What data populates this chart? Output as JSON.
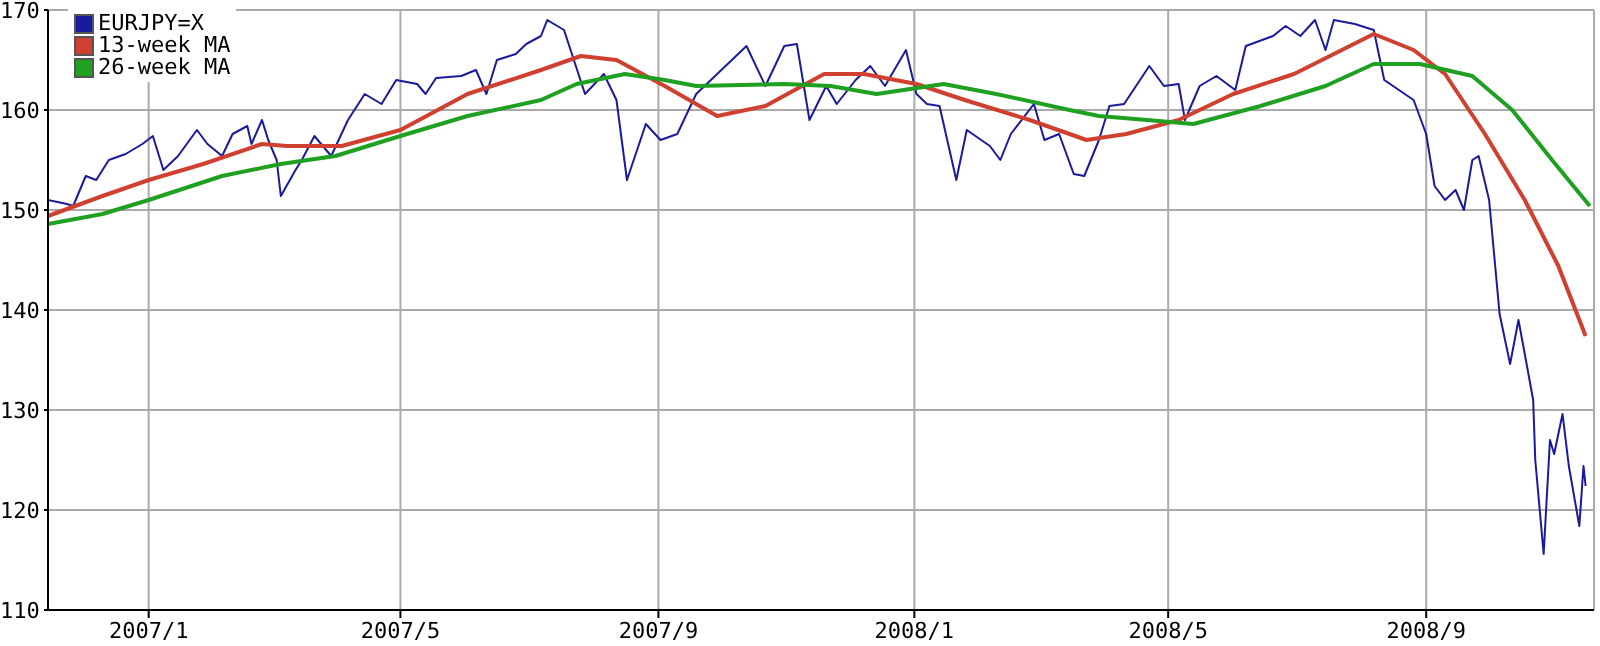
{
  "chart_data": {
    "type": "line",
    "xlim": [
      "2006-11-14",
      "2008-11-20"
    ],
    "xticks": [
      {
        "value": "2007-01-01",
        "label": "2007/1"
      },
      {
        "value": "2007-05-01",
        "label": "2007/5"
      },
      {
        "value": "2007-09-01",
        "label": "2007/9"
      },
      {
        "value": "2008-01-01",
        "label": "2008/1"
      },
      {
        "value": "2008-05-01",
        "label": "2008/5"
      },
      {
        "value": "2008-09-01",
        "label": "2008/9"
      }
    ],
    "ylim": [
      110,
      170
    ],
    "yticks": [
      110,
      120,
      130,
      140,
      150,
      160,
      170
    ],
    "grid": true,
    "legend": "top left",
    "marker": "none",
    "line_style": "solid",
    "series": [
      {
        "name": "EURJPY=X",
        "color": "#1a1a9c",
        "x": [
          "2006-11-14",
          "2006-11-23",
          "2006-11-26",
          "2006-12-02",
          "2006-12-07",
          "2006-12-13",
          "2006-12-21",
          "2006-12-29",
          "2007-01-03",
          "2007-01-08",
          "2007-01-15",
          "2007-01-24",
          "2007-01-29",
          "2007-02-05",
          "2007-02-10",
          "2007-02-17",
          "2007-02-19",
          "2007-02-24",
          "2007-02-27",
          "2007-03-03",
          "2007-03-05",
          "2007-03-12",
          "2007-03-15",
          "2007-03-21",
          "2007-03-29",
          "2007-04-06",
          "2007-04-14",
          "2007-04-22",
          "2007-04-29",
          "2007-05-09",
          "2007-05-13",
          "2007-05-18",
          "2007-05-30",
          "2007-06-06",
          "2007-06-11",
          "2007-06-16",
          "2007-06-25",
          "2007-06-30",
          "2007-07-07",
          "2007-07-10",
          "2007-07-18",
          "2007-07-28",
          "2007-08-06",
          "2007-08-12",
          "2007-08-17",
          "2007-08-26",
          "2007-09-02",
          "2007-09-10",
          "2007-09-19",
          "2007-10-03",
          "2007-10-13",
          "2007-10-22",
          "2007-10-31",
          "2007-11-06",
          "2007-11-12",
          "2007-11-20",
          "2007-11-25",
          "2007-12-04",
          "2007-12-11",
          "2007-12-18",
          "2007-12-28",
          "2008-01-02",
          "2008-01-07",
          "2008-01-13",
          "2008-01-21",
          "2008-01-26",
          "2008-02-06",
          "2008-02-11",
          "2008-02-16",
          "2008-02-27",
          "2008-03-03",
          "2008-03-10",
          "2008-03-17",
          "2008-03-22",
          "2008-03-29",
          "2008-04-03",
          "2008-04-10",
          "2008-04-22",
          "2008-04-29",
          "2008-05-06",
          "2008-05-09",
          "2008-05-16",
          "2008-05-24",
          "2008-06-02",
          "2008-06-07",
          "2008-06-20",
          "2008-06-26",
          "2008-07-03",
          "2008-07-10",
          "2008-07-15",
          "2008-07-19",
          "2008-07-29",
          "2008-08-07",
          "2008-08-12",
          "2008-08-19",
          "2008-08-26",
          "2008-09-01",
          "2008-09-05",
          "2008-09-10",
          "2008-09-15",
          "2008-09-19",
          "2008-09-23",
          "2008-09-26",
          "2008-10-01",
          "2008-10-06",
          "2008-10-11",
          "2008-10-15",
          "2008-10-18",
          "2008-10-22",
          "2008-10-23",
          "2008-10-27",
          "2008-10-30",
          "2008-11-01",
          "2008-11-05",
          "2008-11-08",
          "2008-11-13",
          "2008-11-15",
          "2008-11-16"
        ],
        "values": [
          151,
          150.6,
          150.4,
          153.4,
          153,
          155,
          155.6,
          156.6,
          157.4,
          154,
          155.4,
          158,
          156.6,
          155.4,
          157.6,
          158.4,
          156.6,
          159,
          157,
          155,
          151.4,
          154,
          155,
          157.4,
          155.4,
          159,
          161.6,
          160.6,
          163,
          162.6,
          161.6,
          163.2,
          163.4,
          164,
          161.6,
          165,
          165.6,
          166.6,
          167.4,
          169,
          168,
          161.6,
          163.6,
          161,
          153,
          158.6,
          157,
          157.6,
          161.6,
          164.4,
          166.4,
          162.4,
          166.4,
          166.6,
          159,
          162.4,
          160.6,
          163,
          164.4,
          162.4,
          166,
          161.6,
          160.6,
          160.4,
          153,
          158,
          156.4,
          155,
          157.6,
          160.6,
          157,
          157.6,
          153.6,
          153.4,
          157,
          160.4,
          160.6,
          164.4,
          162.4,
          162.6,
          159,
          162.4,
          163.4,
          162,
          166.4,
          167.4,
          168.4,
          167.4,
          169,
          166,
          169,
          168.6,
          168,
          163,
          162,
          161,
          157.6,
          152.4,
          151,
          152,
          150,
          155,
          155.4,
          151,
          139.6,
          134.6,
          139,
          135.6,
          131,
          125,
          115.6,
          127,
          125.6,
          129.6,
          124.4,
          118.4,
          124.4,
          122.4
        ]
      },
      {
        "name": "13-week MA",
        "color": "#d04030",
        "x": [
          "2006-11-14",
          "2006-12-10",
          "2007-01-01",
          "2007-01-27",
          "2007-02-24",
          "2007-03-08",
          "2007-04-03",
          "2007-05-01",
          "2007-06-02",
          "2007-07-07",
          "2007-07-26",
          "2007-08-12",
          "2007-09-04",
          "2007-09-29",
          "2007-10-22",
          "2007-11-19",
          "2007-12-08",
          "2008-01-02",
          "2008-01-25",
          "2008-02-25",
          "2008-03-15",
          "2008-03-23",
          "2008-04-11",
          "2008-05-06",
          "2008-06-01",
          "2008-06-30",
          "2008-07-19",
          "2008-08-07",
          "2008-08-26",
          "2008-09-10",
          "2008-09-29",
          "2008-10-18",
          "2008-11-03",
          "2008-11-16"
        ],
        "values": [
          149.4,
          151.4,
          153,
          154.6,
          156.6,
          156.4,
          156.4,
          158,
          161.6,
          164,
          165.4,
          165,
          162.4,
          159.4,
          160.4,
          163.6,
          163.6,
          162.6,
          161,
          159,
          157.6,
          157,
          157.6,
          159,
          161.6,
          163.6,
          165.6,
          167.6,
          166,
          163.6,
          157.6,
          151,
          144.4,
          137.4
        ]
      },
      {
        "name": "26-week MA",
        "color": "#20a020",
        "x": [
          "2006-11-14",
          "2006-12-10",
          "2007-01-01",
          "2007-02-05",
          "2007-03-05",
          "2007-03-31",
          "2007-05-01",
          "2007-06-02",
          "2007-07-07",
          "2007-07-24",
          "2007-08-16",
          "2007-09-04",
          "2007-09-19",
          "2007-10-31",
          "2007-11-22",
          "2007-12-14",
          "2008-01-15",
          "2008-02-09",
          "2008-03-15",
          "2008-03-29",
          "2008-04-21",
          "2008-05-13",
          "2008-06-14",
          "2008-07-15",
          "2008-08-07",
          "2008-08-29",
          "2008-09-23",
          "2008-10-12",
          "2008-10-31",
          "2008-11-18"
        ],
        "values": [
          148.6,
          149.6,
          151,
          153.4,
          154.6,
          155.4,
          157.4,
          159.4,
          161,
          162.6,
          163.6,
          163,
          162.4,
          162.6,
          162.4,
          161.6,
          162.6,
          161.6,
          160,
          159.4,
          159,
          158.6,
          160.4,
          162.4,
          164.6,
          164.6,
          163.4,
          160,
          155,
          150.4
        ]
      }
    ]
  }
}
